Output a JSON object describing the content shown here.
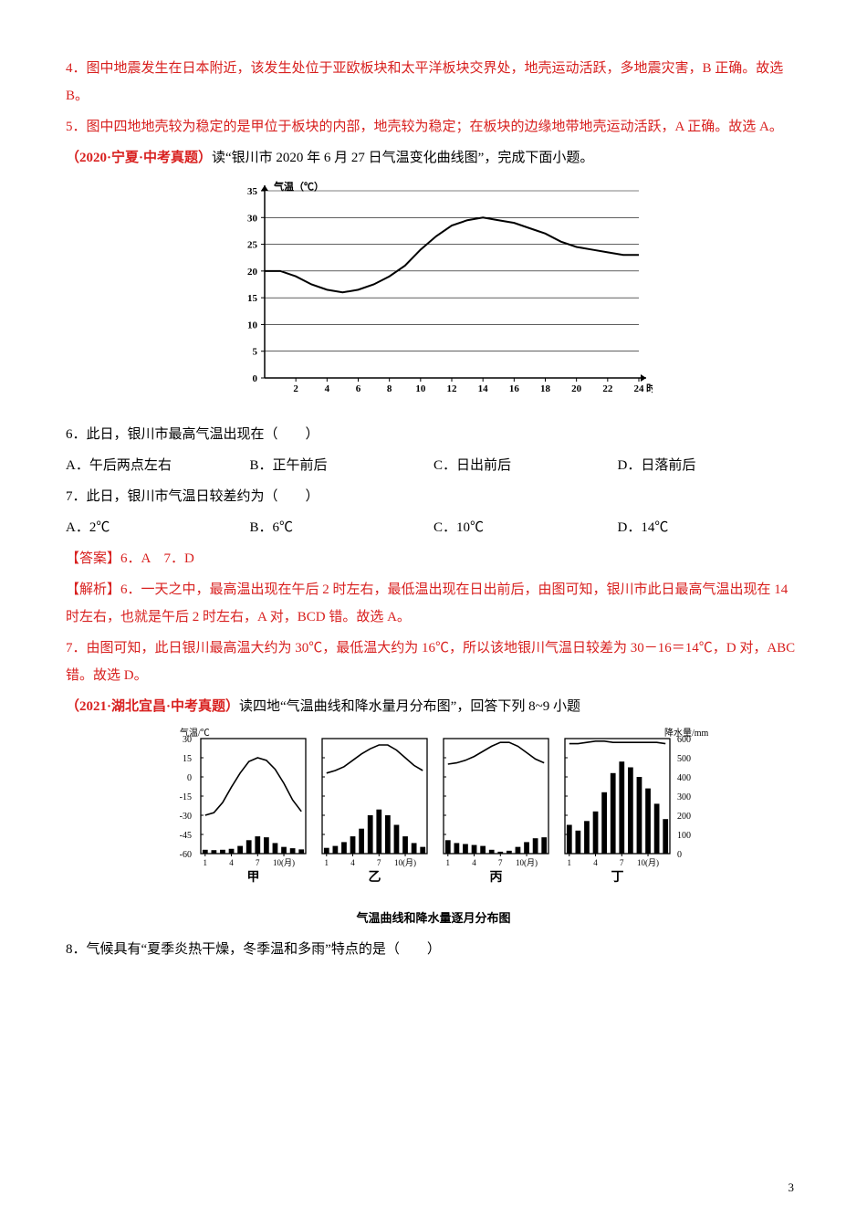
{
  "para4": "4．图中地震发生在日本附近，该发生处位于亚欧板块和太平洋板块交界处，地壳运动活跃，多地震灾害，B 正确。故选 B。",
  "para5": "5．图中四地地壳较为稳定的是甲位于板块的内部，地壳较为稳定；在板块的边缘地带地壳运动活跃，A 正确。故选 A。",
  "source1_prefix": "（2020·宁夏·中考真题）",
  "source1_rest": "读“银川市 2020 年 6 月 27 日气温变化曲线图”，完成下面小题。",
  "chart1": {
    "title": "气温（℃）",
    "x_label": "时",
    "x_ticks": [
      2,
      4,
      6,
      8,
      10,
      12,
      14,
      16,
      18,
      20,
      22,
      24
    ],
    "y_ticks": [
      0,
      5,
      10,
      15,
      20,
      25,
      30,
      35
    ],
    "ylim": [
      0,
      35
    ],
    "xlim": [
      0,
      24
    ],
    "hours": [
      0,
      1,
      2,
      3,
      4,
      5,
      6,
      7,
      8,
      9,
      10,
      11,
      12,
      13,
      14,
      15,
      16,
      17,
      18,
      19,
      20,
      21,
      22,
      23,
      24
    ],
    "temps": [
      20,
      20,
      19,
      17.5,
      16.5,
      16,
      16.5,
      17.5,
      19,
      21,
      24,
      26.5,
      28.5,
      29.5,
      30,
      29.5,
      29,
      28,
      27,
      25.5,
      24.5,
      24,
      23.5,
      23,
      23
    ],
    "line_color": "#000000",
    "line_width": 2,
    "bg": "#ffffff",
    "axis_color": "#000000"
  },
  "q6": {
    "text": "6．此日，银川市最高气温出现在（　　）",
    "A": "A．午后两点左右",
    "B": "B．正午前后",
    "C": "C．日出前后",
    "D": "D．日落前后"
  },
  "q7": {
    "text": "7．此日，银川市气温日较差约为（　　）",
    "A": "A．2℃",
    "B": "B．6℃",
    "C": "C．10℃",
    "D": "D．14℃"
  },
  "ans67": "【答案】6．A　7．D",
  "exp_label": "【解析】",
  "exp6": "6．一天之中，最高温出现在午后 2 时左右，最低温出现在日出前后，由图可知，银川市此日最高气温出现在 14 时左右，也就是午后 2 时左右，A 对，BCD 错。故选 A。",
  "exp7": "7．由图可知，此日银川最高温大约为 30℃，最低温大约为 16℃，所以该地银川气温日较差为 30－16＝14℃，D 对，ABC 错。故选 D。",
  "source2_prefix": "（2021·湖北宜昌·中考真题）",
  "source2_rest": "读四地“气温曲线和降水量月分布图”，回答下列 8~9 小题",
  "panels": {
    "y_temp_label": "气温/℃",
    "y_precip_label": "降水量/mm",
    "temp_ticks": [
      30,
      15,
      0,
      -15,
      -30,
      -45,
      -60
    ],
    "precip_ticks": [
      600,
      500,
      400,
      300,
      200,
      100,
      0
    ],
    "x_ticks_label": [
      "1",
      "4",
      "7",
      "10(月)"
    ],
    "months": [
      1,
      2,
      3,
      4,
      5,
      6,
      7,
      8,
      9,
      10,
      11,
      12
    ],
    "jia_label": "甲",
    "yi_label": "乙",
    "bing_label": "丙",
    "ding_label": "丁",
    "line_color": "#000000",
    "bar_color": "#000000",
    "jia": {
      "temp": [
        -30,
        -28,
        -20,
        -8,
        3,
        12,
        15,
        13,
        6,
        -5,
        -18,
        -27
      ],
      "precip": [
        20,
        18,
        20,
        25,
        40,
        70,
        90,
        85,
        55,
        35,
        28,
        22
      ]
    },
    "yi": {
      "temp": [
        3,
        5,
        8,
        13,
        18,
        22,
        25,
        25,
        21,
        15,
        9,
        5
      ],
      "precip": [
        30,
        40,
        60,
        90,
        130,
        200,
        230,
        200,
        150,
        90,
        55,
        35
      ]
    },
    "bing": {
      "temp": [
        10,
        11,
        13,
        16,
        20,
        24,
        27,
        27,
        24,
        19,
        14,
        11
      ],
      "precip": [
        70,
        55,
        50,
        45,
        40,
        20,
        10,
        15,
        35,
        60,
        80,
        85
      ]
    },
    "ding": {
      "temp": [
        26,
        26,
        27,
        28,
        28,
        27,
        27,
        27,
        27,
        27,
        27,
        26
      ],
      "precip": [
        150,
        120,
        170,
        220,
        320,
        420,
        480,
        450,
        400,
        340,
        260,
        180
      ]
    }
  },
  "caption2": "气温曲线和降水量逐月分布图",
  "q8": "8．气候具有“夏季炎热干燥，冬季温和多雨”特点的是（　　）",
  "page_num": "3"
}
